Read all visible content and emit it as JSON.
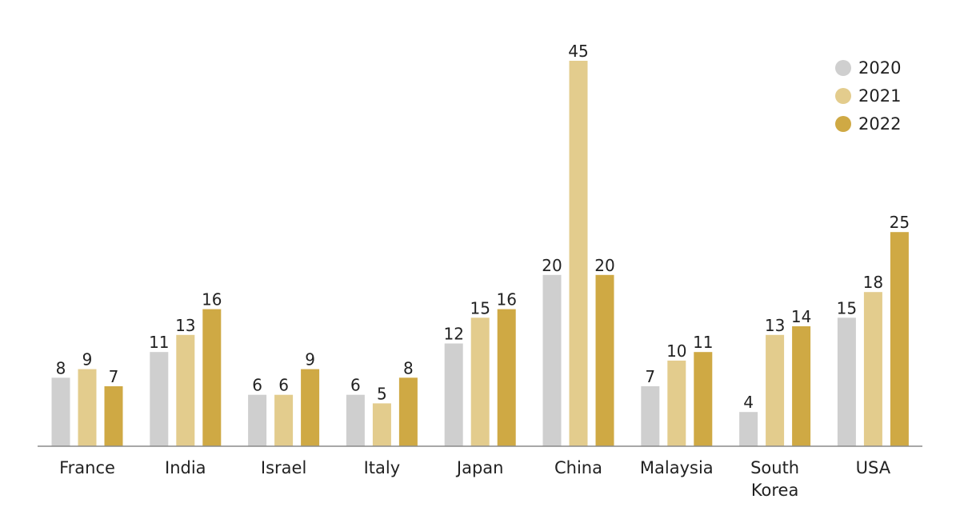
{
  "chart_data": {
    "type": "bar",
    "title": "",
    "xlabel": "",
    "ylabel": "",
    "categories": [
      "France",
      "India",
      "Israel",
      "Italy",
      "Japan",
      "China",
      "Malaysia",
      "South Korea",
      "USA"
    ],
    "category_lines": [
      [
        "France"
      ],
      [
        "India"
      ],
      [
        "Israel"
      ],
      [
        "Italy"
      ],
      [
        "Japan"
      ],
      [
        "China"
      ],
      [
        "Malaysia"
      ],
      [
        "South",
        "Korea"
      ],
      [
        "USA"
      ]
    ],
    "series": [
      {
        "name": "2020",
        "color": "#cfcfcf",
        "values": [
          8,
          11,
          6,
          6,
          12,
          20,
          7,
          4,
          15
        ]
      },
      {
        "name": "2021",
        "color": "#e3cc8d",
        "values": [
          9,
          13,
          6,
          5,
          15,
          45,
          10,
          13,
          18
        ]
      },
      {
        "name": "2022",
        "color": "#cfa944",
        "values": [
          7,
          16,
          9,
          8,
          16,
          20,
          11,
          14,
          25
        ]
      }
    ],
    "ylim": [
      0,
      45
    ],
    "grid": false,
    "data_labels": true,
    "legend_position": "top-right"
  }
}
